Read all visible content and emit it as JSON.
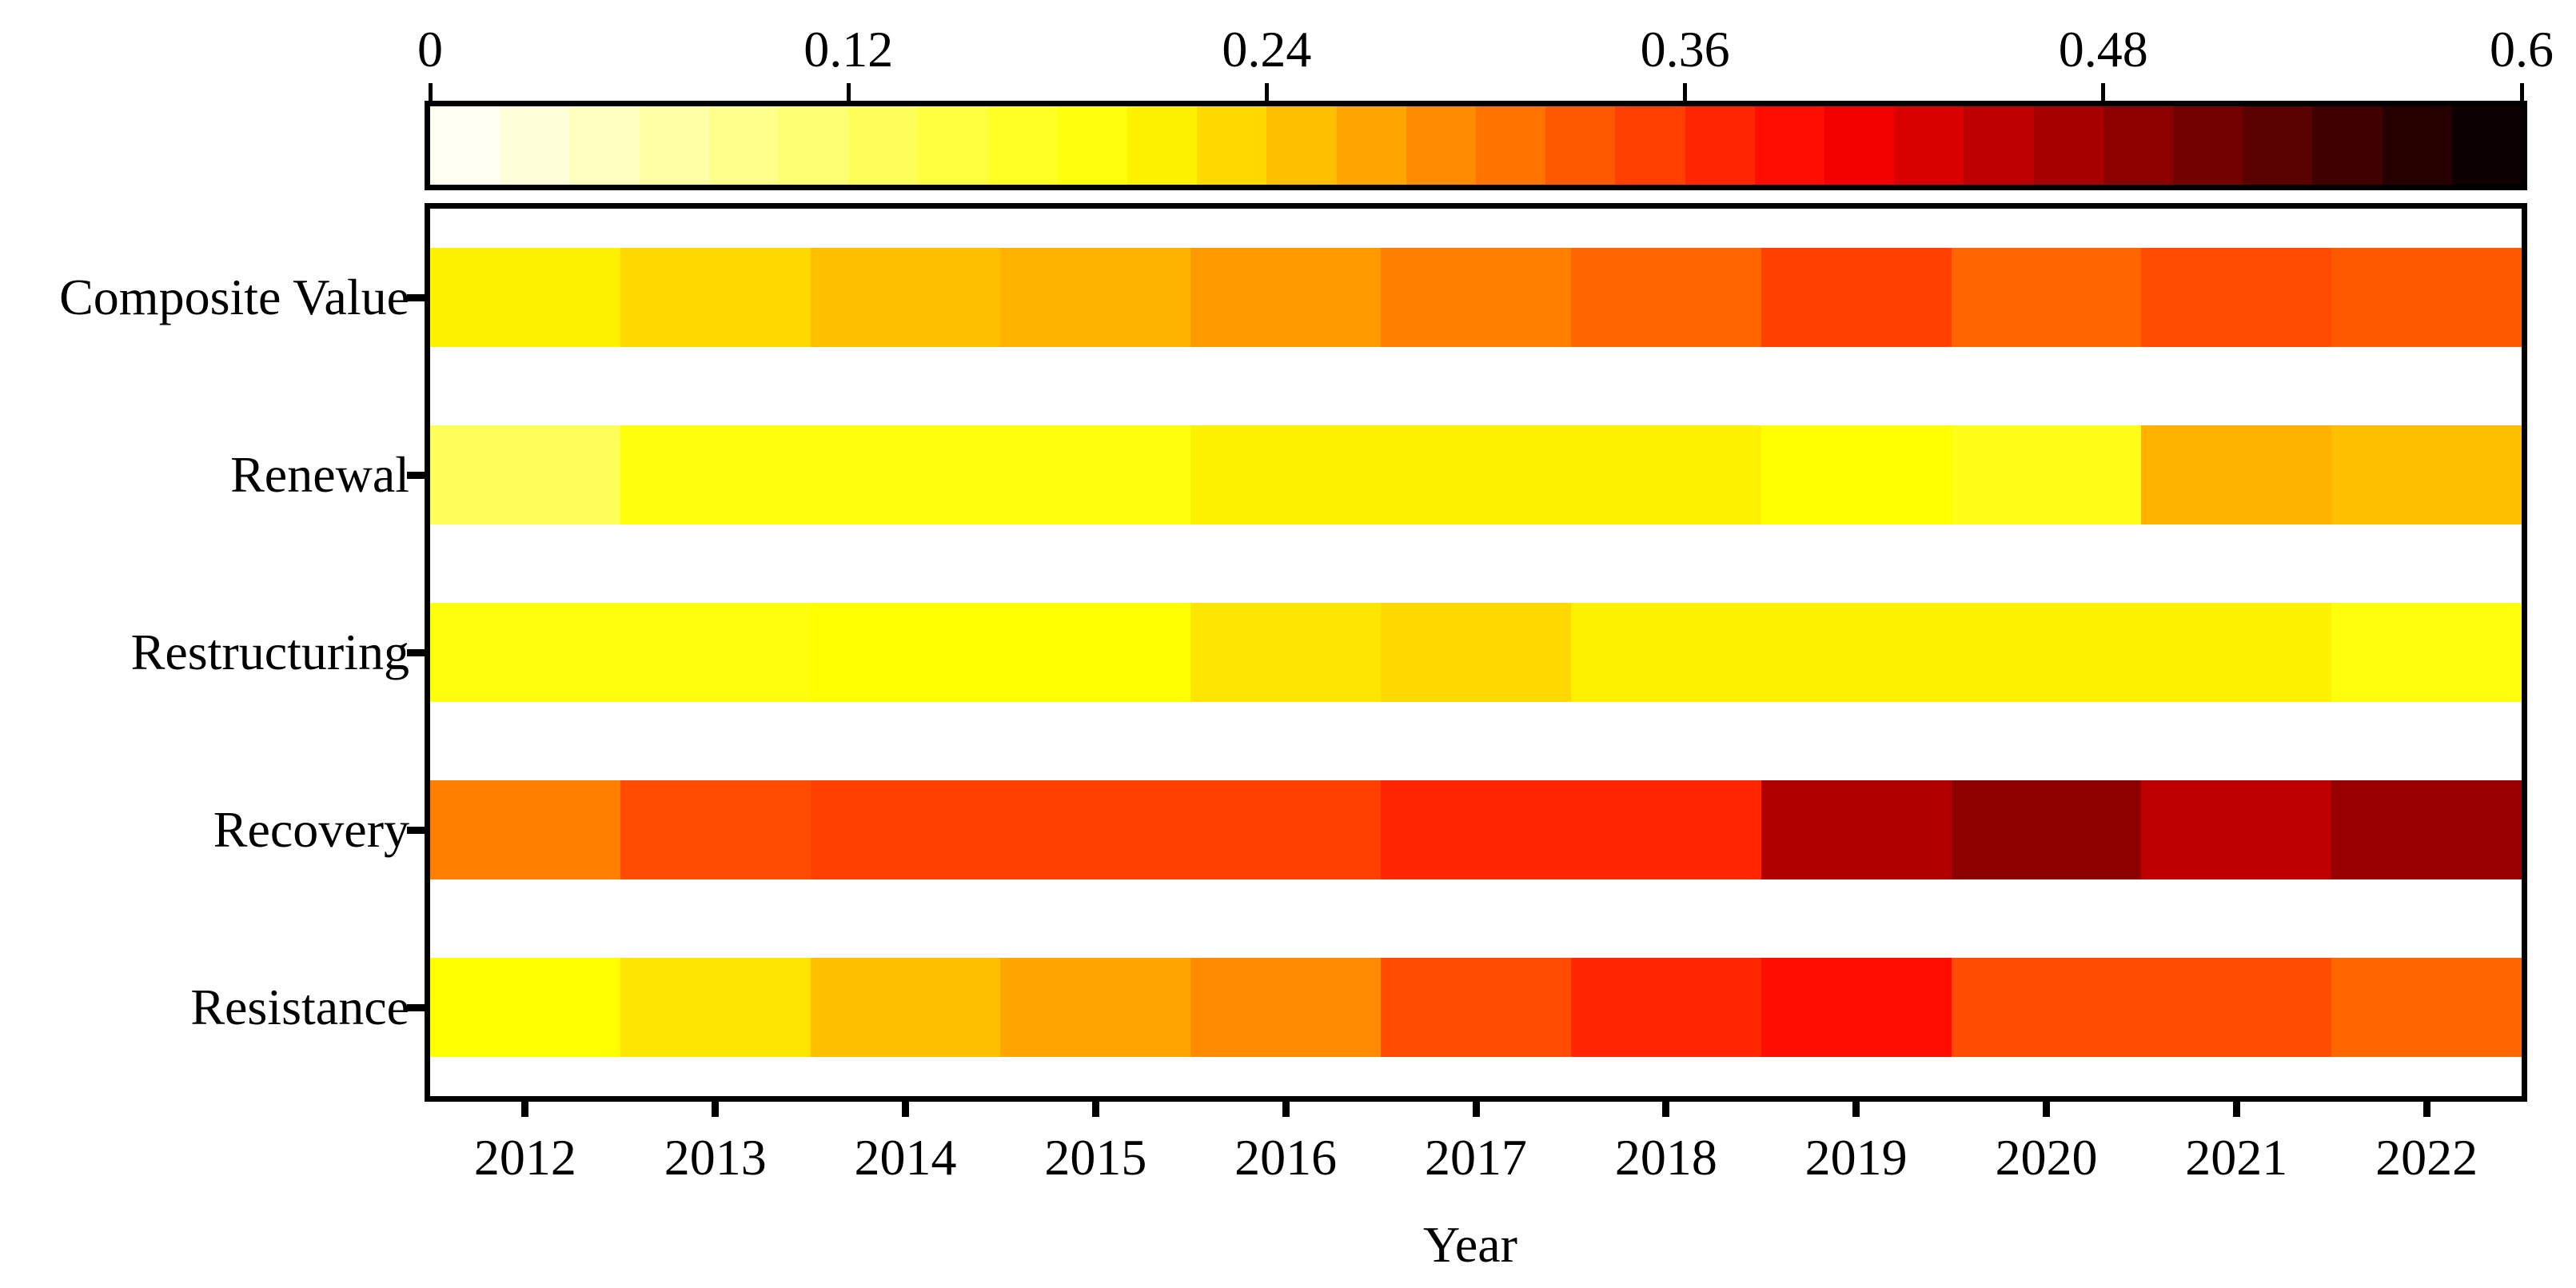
{
  "chart_data": {
    "type": "heatmap",
    "title": "",
    "xlabel": "Year",
    "ylabel": "",
    "x": [
      "2012",
      "2013",
      "2014",
      "2015",
      "2016",
      "2017",
      "2018",
      "2019",
      "2020",
      "2021",
      "2022"
    ],
    "rows": [
      {
        "name": "Composite Value",
        "values": [
          0.21,
          0.23,
          0.25,
          0.26,
          0.28,
          0.3,
          0.32,
          0.35,
          0.32,
          0.34,
          0.33
        ]
      },
      {
        "name": "Renewal",
        "values": [
          0.13,
          0.19,
          0.19,
          0.19,
          0.21,
          0.21,
          0.21,
          0.2,
          0.18,
          0.26,
          0.25
        ]
      },
      {
        "name": "Restructuring",
        "values": [
          0.19,
          0.19,
          0.2,
          0.2,
          0.22,
          0.23,
          0.21,
          0.21,
          0.21,
          0.21,
          0.19
        ]
      },
      {
        "name": "Recovery",
        "values": [
          0.3,
          0.34,
          0.35,
          0.35,
          0.35,
          0.37,
          0.37,
          0.46,
          0.49,
          0.45,
          0.48
        ]
      },
      {
        "name": "Resistance",
        "values": [
          0.2,
          0.22,
          0.25,
          0.27,
          0.29,
          0.34,
          0.37,
          0.39,
          0.34,
          0.34,
          0.32
        ]
      }
    ],
    "colormap": "hot_r (white to yellow to orange to red to dark red)",
    "vmin": 0,
    "vmax": 0.6,
    "grid": false,
    "colorbar": {
      "position": "top",
      "bins": 30,
      "ticks": [
        0,
        0.12,
        0.24,
        0.36,
        0.48,
        0.6
      ],
      "tick_labels": [
        "0",
        "0.12",
        "0.24",
        "0.36",
        "0.48",
        "0.6"
      ]
    },
    "axis_color": "#000000",
    "background_color": "#ffffff"
  }
}
